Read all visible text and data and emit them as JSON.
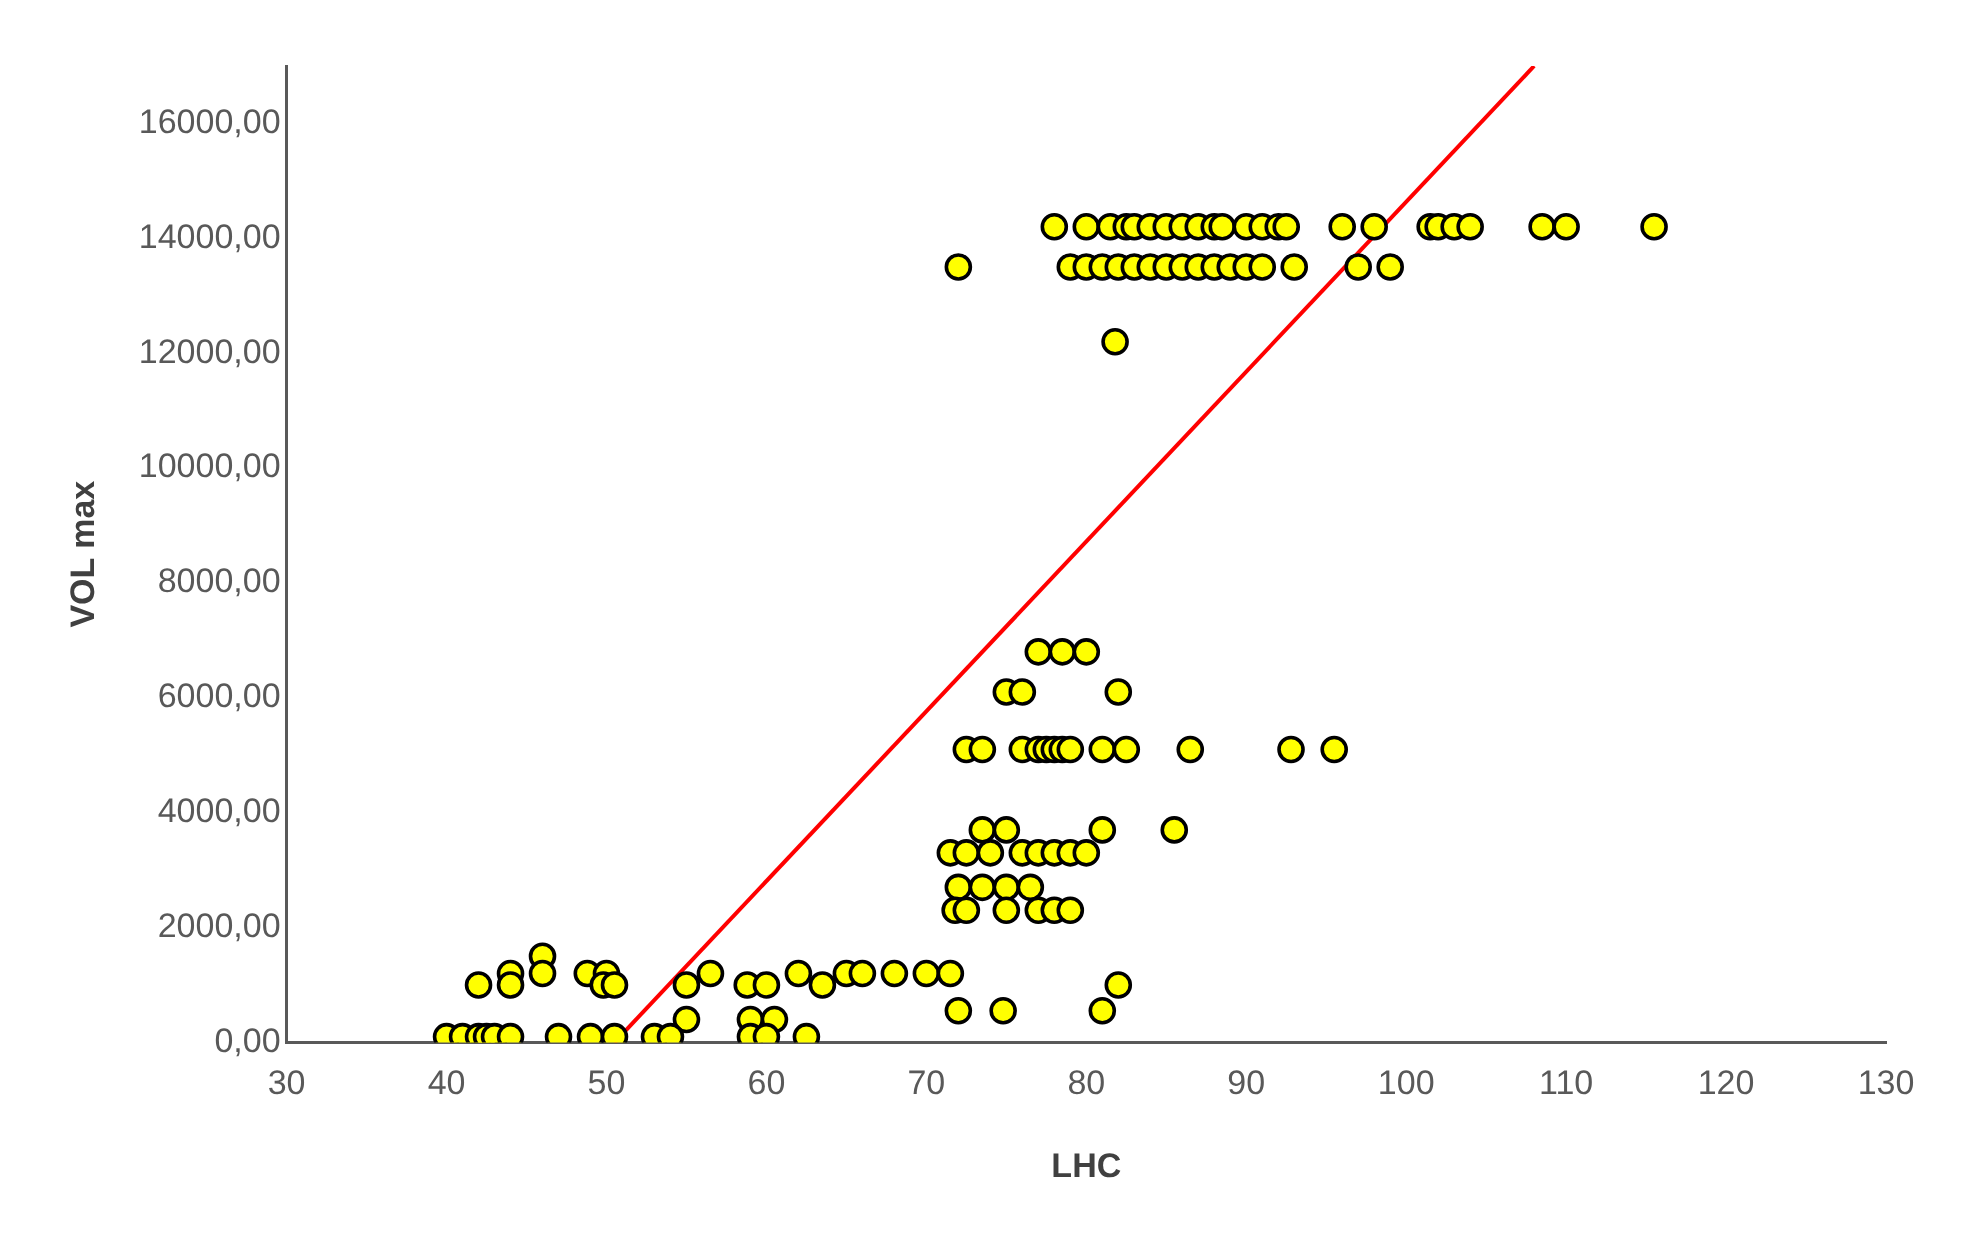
{
  "chart_data": {
    "type": "scatter",
    "xlabel": "LHC",
    "ylabel": "VOL max",
    "xlim": [
      30,
      130
    ],
    "ylim": [
      0,
      17000
    ],
    "xticks": [
      30,
      40,
      50,
      60,
      70,
      80,
      90,
      100,
      110,
      120,
      130
    ],
    "yticks": [
      {
        "value": 0,
        "label": "0,00"
      },
      {
        "value": 2000,
        "label": "2000,00"
      },
      {
        "value": 4000,
        "label": "4000,00"
      },
      {
        "value": 6000,
        "label": "6000,00"
      },
      {
        "value": 8000,
        "label": "8000,00"
      },
      {
        "value": 10000,
        "label": "10000,00"
      },
      {
        "value": 12000,
        "label": "12000,00"
      },
      {
        "value": 14000,
        "label": "14000,00"
      },
      {
        "value": 16000,
        "label": "16000,00"
      }
    ],
    "grid": false,
    "legend": false,
    "marker": "circle",
    "series": [
      {
        "color": "#ffff00",
        "x": [
          78,
          80,
          81.5,
          82.5,
          83,
          84,
          85,
          86,
          87,
          88,
          88.5,
          90,
          91,
          92,
          92.5,
          96,
          98,
          101.5,
          102,
          103,
          104,
          108.5,
          110,
          115.5,
          72,
          79,
          80,
          81,
          82,
          83,
          84,
          85,
          86,
          87,
          88,
          89,
          90,
          91,
          93,
          97,
          99,
          81.8,
          77,
          78.5,
          80,
          75,
          76,
          82,
          72.5,
          73.5,
          76,
          77,
          77.5,
          78,
          78.5,
          79,
          81,
          82.5,
          86.5,
          92.8,
          95.5,
          73.5,
          75,
          81,
          85.5,
          71.5,
          72.5,
          74,
          76,
          77,
          78,
          79,
          80,
          72,
          73.5,
          75,
          76.5,
          71.8,
          72.5,
          75,
          77,
          78,
          79,
          46,
          44,
          46,
          48.8,
          50,
          56.5,
          62,
          65,
          66,
          68,
          70,
          71.5,
          42,
          44,
          49.8,
          50.5,
          55,
          58.8,
          60,
          63.5,
          82,
          72,
          74.8,
          81,
          55,
          59,
          60.5,
          40,
          41,
          42,
          42.5,
          43,
          44,
          47,
          49,
          50.5,
          53,
          54,
          59,
          60,
          62.5
        ],
        "values": [
          14200,
          14200,
          14200,
          14200,
          14200,
          14200,
          14200,
          14200,
          14200,
          14200,
          14200,
          14200,
          14200,
          14200,
          14200,
          14200,
          14200,
          14200,
          14200,
          14200,
          14200,
          14200,
          14200,
          14200,
          13500,
          13500,
          13500,
          13500,
          13500,
          13500,
          13500,
          13500,
          13500,
          13500,
          13500,
          13500,
          13500,
          13500,
          13500,
          13500,
          13500,
          12200,
          6800,
          6800,
          6800,
          6100,
          6100,
          6100,
          5100,
          5100,
          5100,
          5100,
          5100,
          5100,
          5100,
          5100,
          5100,
          5100,
          5100,
          5100,
          5100,
          3700,
          3700,
          3700,
          3700,
          3300,
          3300,
          3300,
          3300,
          3300,
          3300,
          3300,
          3300,
          2700,
          2700,
          2700,
          2700,
          2300,
          2300,
          2300,
          2300,
          2300,
          2300,
          1500,
          1200,
          1200,
          1200,
          1200,
          1200,
          1200,
          1200,
          1200,
          1200,
          1200,
          1200,
          1000,
          1000,
          1000,
          1000,
          1000,
          1000,
          1000,
          1000,
          1000,
          550,
          550,
          550,
          400,
          400,
          400,
          100,
          100,
          100,
          100,
          100,
          100,
          100,
          100,
          100,
          100,
          100,
          100,
          100,
          100
        ]
      },
      {
        "type": "line",
        "color": "#ff0000",
        "marker": "none",
        "x": [
          50.5,
          108
        ],
        "values": [
          0,
          17000
        ]
      }
    ]
  }
}
